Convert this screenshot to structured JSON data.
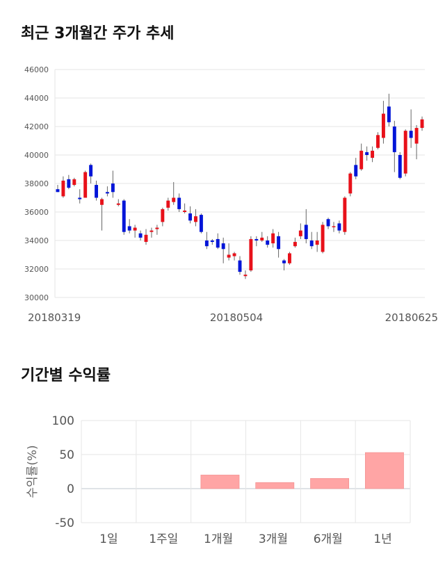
{
  "titles": {
    "price_trend": "최근 3개월간 주가 추세",
    "period_return": "기간별 수익률"
  },
  "chart_data": [
    {
      "type": "candlestick",
      "title": "최근 3개월간 주가 추세",
      "ylim": [
        30000,
        46000
      ],
      "y_ticks": [
        30000,
        32000,
        34000,
        36000,
        38000,
        40000,
        42000,
        44000,
        46000
      ],
      "x_tick_labels": [
        "20180319",
        "20180504",
        "20180625"
      ],
      "up_color": "#e8111a",
      "down_color": "#0015d8",
      "candles": [
        [
          37600,
          37400,
          37900,
          37400
        ],
        [
          37100,
          38200,
          38500,
          37000
        ],
        [
          38300,
          37700,
          38600,
          37600
        ],
        [
          37900,
          38300,
          38400,
          37800
        ],
        [
          37000,
          36900,
          37600,
          36600
        ],
        [
          37000,
          38800,
          38900,
          37000
        ],
        [
          39300,
          38500,
          39400,
          38000
        ],
        [
          37900,
          37000,
          38200,
          36800
        ],
        [
          36500,
          36900,
          37000,
          34700
        ],
        [
          37400,
          37300,
          37800,
          37100
        ],
        [
          38000,
          37400,
          38900,
          37000
        ],
        [
          36500,
          36600,
          36900,
          36400
        ],
        [
          36800,
          34600,
          36900,
          34400
        ],
        [
          35000,
          34700,
          35500,
          34500
        ],
        [
          34700,
          34900,
          35100,
          34200
        ],
        [
          34500,
          34200,
          34700,
          34000
        ],
        [
          33900,
          34400,
          34800,
          33700
        ],
        [
          34600,
          34700,
          34900,
          34200
        ],
        [
          34800,
          34900,
          35100,
          34400
        ],
        [
          35300,
          36200,
          36300,
          35000
        ],
        [
          36300,
          36800,
          37000,
          36100
        ],
        [
          36700,
          37000,
          38100,
          36500
        ],
        [
          37000,
          36200,
          37300,
          36000
        ],
        [
          36000,
          36100,
          36600,
          35900
        ],
        [
          35900,
          35400,
          36400,
          35200
        ],
        [
          35300,
          35700,
          36200,
          35000
        ],
        [
          35800,
          34600,
          35900,
          34500
        ],
        [
          34000,
          33600,
          34600,
          33400
        ],
        [
          34000,
          33900,
          34100,
          33700
        ],
        [
          34100,
          33500,
          34500,
          33400
        ],
        [
          33800,
          33400,
          34200,
          32400
        ],
        [
          32800,
          33000,
          33800,
          32600
        ],
        [
          32900,
          33100,
          33200,
          32600
        ],
        [
          32600,
          31800,
          32900,
          31600
        ],
        [
          31500,
          31600,
          31900,
          31300
        ],
        [
          31900,
          34100,
          34300,
          31800
        ],
        [
          34100,
          34000,
          34300,
          33600
        ],
        [
          34000,
          34200,
          34600,
          33900
        ],
        [
          34000,
          33700,
          34300,
          33500
        ],
        [
          33800,
          34500,
          34800,
          33500
        ],
        [
          34300,
          33400,
          34600,
          32800
        ],
        [
          32600,
          32400,
          32700,
          31900
        ],
        [
          32400,
          33100,
          33200,
          32300
        ],
        [
          33600,
          33900,
          34200,
          33500
        ],
        [
          34300,
          34700,
          35200,
          34100
        ],
        [
          35100,
          34100,
          36200,
          33800
        ],
        [
          34000,
          33600,
          34600,
          33400
        ],
        [
          33700,
          34000,
          34600,
          33200
        ],
        [
          33200,
          35100,
          35300,
          33100
        ],
        [
          35500,
          35000,
          35600,
          34800
        ],
        [
          35000,
          35000,
          35300,
          34600
        ],
        [
          35200,
          34700,
          35400,
          34500
        ],
        [
          34600,
          37000,
          37100,
          34400
        ],
        [
          37300,
          38700,
          38800,
          37100
        ],
        [
          39300,
          38500,
          39800,
          38300
        ],
        [
          39000,
          40300,
          40800,
          38900
        ],
        [
          40200,
          40000,
          40600,
          39600
        ],
        [
          39800,
          40300,
          40600,
          39500
        ],
        [
          40500,
          41400,
          41600,
          40400
        ],
        [
          41200,
          42900,
          43800,
          40800
        ],
        [
          43400,
          42300,
          44300,
          42000
        ],
        [
          42000,
          40200,
          42400,
          38800
        ],
        [
          40000,
          38400,
          40200,
          38300
        ],
        [
          38700,
          41700,
          41800,
          38500
        ],
        [
          41700,
          41200,
          43200,
          40500
        ],
        [
          40800,
          41900,
          42100,
          39700
        ],
        [
          41900,
          42500,
          42700,
          41700
        ]
      ]
    },
    {
      "type": "bar",
      "title": "기간별 수익률",
      "ylabel": "수익률(%)",
      "ylim": [
        -50,
        100
      ],
      "y_ticks": [
        -50,
        0,
        50,
        100
      ],
      "categories": [
        "1일",
        "1주일",
        "1개월",
        "3개월",
        "6개월",
        "1년"
      ],
      "values": [
        0,
        0,
        20,
        9,
        15,
        53
      ],
      "bar_color": "#ffa5a5"
    }
  ]
}
